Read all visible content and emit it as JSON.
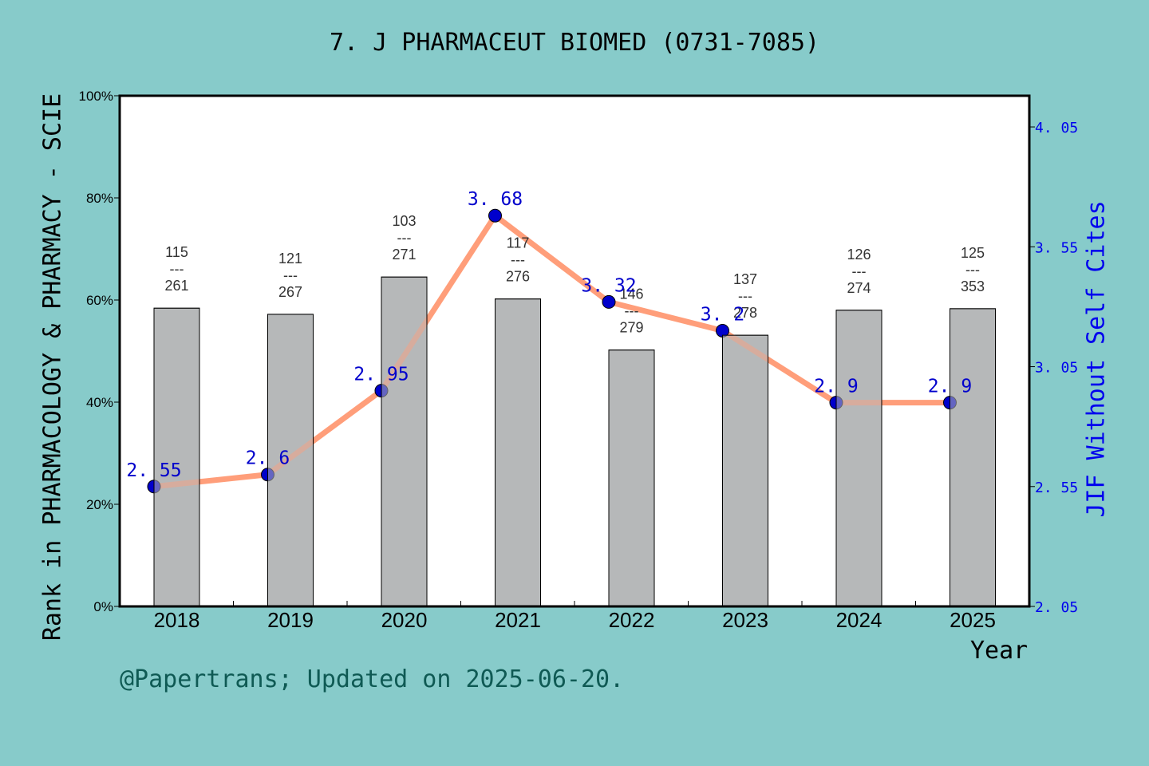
{
  "title": "7. J PHARMACEUT BIOMED (0731-7085)",
  "footer": "@Papertrans; Updated on 2025-06-20.",
  "colors": {
    "background": "#87cbca",
    "plot_background": "#ffffff",
    "bar_fill": "#b7b8b9",
    "line": "#ff9e7a",
    "marker": "#0000cc",
    "right_axis": "#0000ee",
    "footer": "#0f5a54"
  },
  "chart_data": {
    "type": "bar+line",
    "title": "7. J PHARMACEUT BIOMED (0731-7085)",
    "xlabel": "Year",
    "ylabel": "Rank in PHARMACOLOGY & PHARMACY - SCIE",
    "ylabel_right": "JIF Without Self Cites",
    "categories": [
      "2018",
      "2019",
      "2020",
      "2021",
      "2022",
      "2023",
      "2024",
      "2025"
    ],
    "ylim": [
      0,
      100
    ],
    "yticks": [
      "0%",
      "20%",
      "40%",
      "60%",
      "80%",
      "100%"
    ],
    "ylim_right": [
      2.05,
      4.18
    ],
    "yticks_right": [
      "2.05",
      "2.55",
      "3.05",
      "3.55",
      "4.05"
    ],
    "series": [
      {
        "name": "Rank percentile (bar)",
        "type": "bar",
        "axis": "left",
        "values": [
          58.4,
          57.2,
          64.5,
          60.2,
          50.2,
          53.1,
          58.0,
          58.3
        ],
        "rank": [
          115,
          121,
          103,
          117,
          146,
          137,
          126,
          125
        ],
        "total": [
          261,
          267,
          271,
          276,
          279,
          278,
          274,
          353
        ]
      },
      {
        "name": "JIF Without Self Cites",
        "type": "line",
        "axis": "right",
        "values": [
          2.55,
          2.6,
          2.95,
          3.68,
          3.32,
          3.2,
          2.9,
          2.9
        ],
        "labels": [
          "2.55",
          "2.6",
          "2.95",
          "3.68",
          "3.32",
          "3.2",
          "2.9",
          "2.9"
        ]
      }
    ],
    "grid": false,
    "legend": "none"
  }
}
